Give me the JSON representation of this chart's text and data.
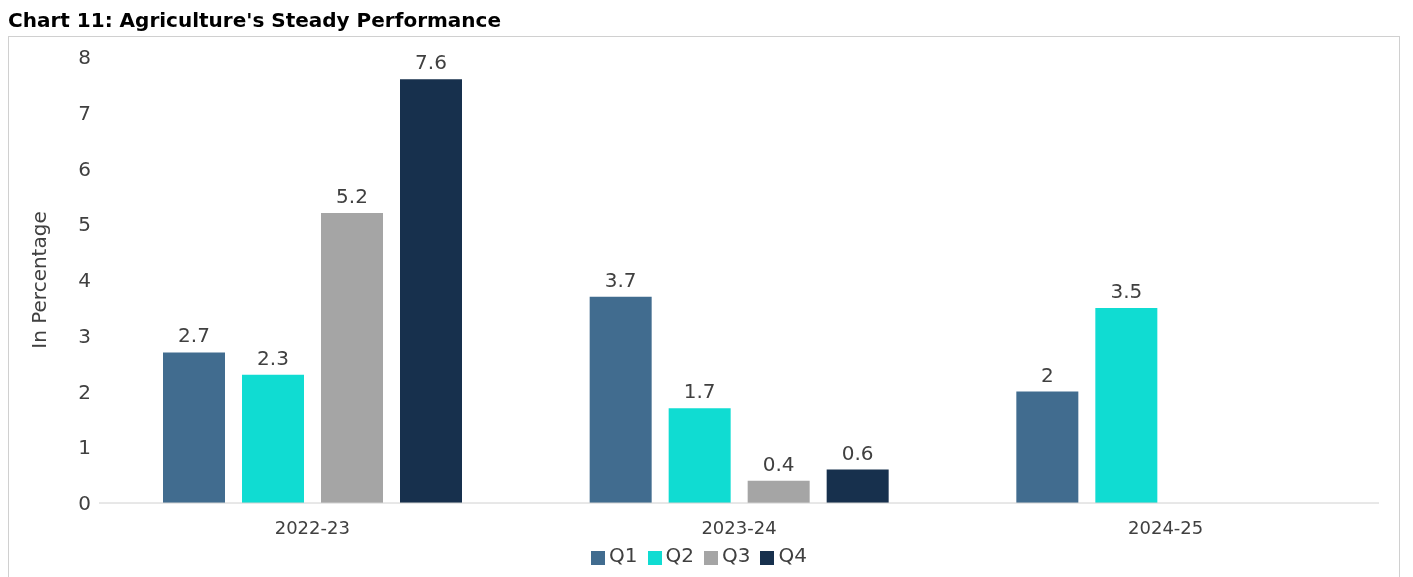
{
  "chart_data": {
    "type": "bar",
    "title": "Chart 11: Agriculture's Steady Performance",
    "ylabel": "In Percentage",
    "categories": [
      "2022-23",
      "2023-24",
      "2024-25"
    ],
    "series": [
      {
        "name": "Q1",
        "color": "#416c8f",
        "values": [
          2.7,
          3.7,
          2
        ]
      },
      {
        "name": "Q2",
        "color": "#10dcd2",
        "values": [
          2.3,
          1.7,
          3.5
        ]
      },
      {
        "name": "Q3",
        "color": "#a5a5a5",
        "values": [
          5.2,
          0.4,
          null
        ]
      },
      {
        "name": "Q4",
        "color": "#17304d",
        "values": [
          7.6,
          0.6,
          null
        ]
      }
    ],
    "ylim": [
      0,
      8
    ],
    "yticks": [
      0,
      1,
      2,
      3,
      4,
      5,
      6,
      7,
      8
    ],
    "grid": false,
    "legend": "bottom",
    "data_labels": true
  }
}
